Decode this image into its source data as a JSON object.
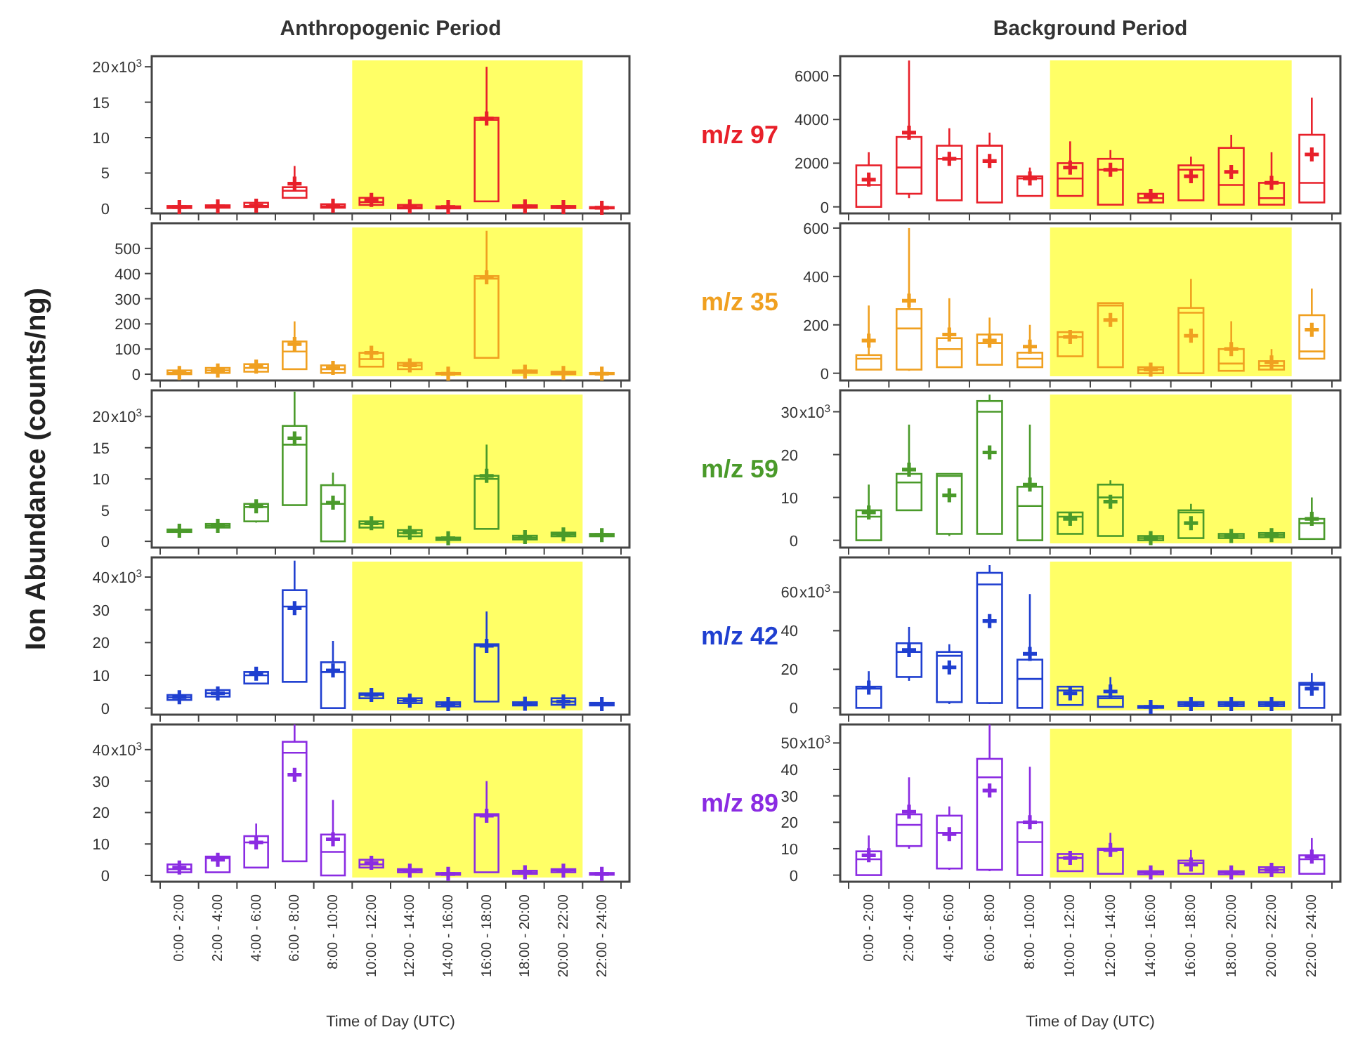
{
  "chart_data": [
    {
      "type": "box",
      "title": "Anthropogenic Period",
      "categories": [
        "0:00 - 2:00",
        "2:00 - 4:00",
        "4:00 - 6:00",
        "6:00 - 8:00",
        "8:00 - 10:00",
        "10:00 - 12:00",
        "12:00 - 14:00",
        "14:00 - 16:00",
        "16:00 - 18:00",
        "18:00 - 20:00",
        "20:00 - 22:00",
        "22:00 - 24:00"
      ],
      "tick_labels": "y",
      "ylim": [
        -0.7,
        21.5
      ],
      "yticks": [
        0,
        5,
        10,
        15,
        20
      ],
      "annotations": [
        "x10$^{3}$"
      ],
      "bands": [
        {
          "axis": "x",
          "from": "10:00 - 12:00",
          "to": "20:00 - 22:00",
          "color": "#ffff66"
        }
      ],
      "series": [
        {
          "color": "#e8202a",
          "boxes": [
            {
              "low": 0,
              "q1": 0.05,
              "median": 0.15,
              "q3": 0.35,
              "high": 0.6,
              "mean": 0.2
            },
            {
              "low": 0,
              "q1": 0.1,
              "median": 0.25,
              "q3": 0.45,
              "high": 0.7,
              "mean": 0.3
            },
            {
              "low": 0.1,
              "q1": 0.2,
              "median": 0.35,
              "q3": 0.8,
              "high": 1.2,
              "mean": 0.4
            },
            {
              "low": 1.5,
              "q1": 1.5,
              "median": 2.5,
              "q3": 3,
              "high": 6,
              "mean": 3.5
            },
            {
              "low": 0,
              "q1": 0.1,
              "median": 0.3,
              "q3": 0.6,
              "high": 0.8,
              "mean": 0.4
            },
            {
              "low": 0.4,
              "q1": 0.5,
              "median": 0.9,
              "q3": 1.5,
              "high": 1.8,
              "mean": 1.2
            },
            {
              "low": 0,
              "q1": 0,
              "median": 0.2,
              "q3": 0.5,
              "high": 0.6,
              "mean": 0.3
            },
            {
              "low": 0,
              "q1": 0,
              "median": 0.1,
              "q3": 0.3,
              "high": 0.4,
              "mean": 0.2
            },
            {
              "low": 1,
              "q1": 1,
              "median": 12.5,
              "q3": 12.8,
              "high": 20,
              "mean": 12.7
            },
            {
              "low": 0,
              "q1": 0.1,
              "median": 0.25,
              "q3": 0.45,
              "high": 0.6,
              "mean": 0.3
            },
            {
              "low": 0,
              "q1": 0.05,
              "median": 0.15,
              "q3": 0.35,
              "high": 0.5,
              "mean": 0.2
            },
            {
              "low": 0,
              "q1": 0,
              "median": 0.05,
              "q3": 0.2,
              "high": 0.3,
              "mean": 0.1
            }
          ]
        }
      ]
    },
    {
      "type": "box",
      "categories": [
        "0:00 - 2:00",
        "2:00 - 4:00",
        "4:00 - 6:00",
        "6:00 - 8:00",
        "8:00 - 10:00",
        "10:00 - 12:00",
        "12:00 - 14:00",
        "14:00 - 16:00",
        "16:00 - 18:00",
        "18:00 - 20:00",
        "20:00 - 22:00",
        "22:00 - 24:00"
      ],
      "tick_labels": "y",
      "ylim": [
        -25,
        600
      ],
      "yticks": [
        0,
        100,
        200,
        300,
        400,
        500
      ],
      "bands": [
        {
          "axis": "x",
          "from": "10:00 - 12:00",
          "to": "20:00 - 22:00",
          "color": "#ffff66"
        }
      ],
      "series": [
        {
          "color": "#f0a020",
          "boxes": [
            {
              "low": 0,
              "q1": 0,
              "median": 5,
              "q3": 15,
              "high": 20,
              "mean": 5
            },
            {
              "low": 5,
              "q1": 5,
              "median": 15,
              "q3": 25,
              "high": 30,
              "mean": 15
            },
            {
              "low": 10,
              "q1": 10,
              "median": 25,
              "q3": 40,
              "high": 50,
              "mean": 30
            },
            {
              "low": 20,
              "q1": 20,
              "median": 90,
              "q3": 130,
              "high": 210,
              "mean": 120
            },
            {
              "low": 5,
              "q1": 5,
              "median": 20,
              "q3": 35,
              "high": 45,
              "mean": 25
            },
            {
              "low": 30,
              "q1": 30,
              "median": 60,
              "q3": 85,
              "high": 110,
              "mean": 85
            },
            {
              "low": 20,
              "q1": 20,
              "median": 35,
              "q3": 45,
              "high": 50,
              "mean": 35
            },
            {
              "low": 0,
              "q1": 0,
              "median": 2,
              "q3": 5,
              "high": 10,
              "mean": 2
            },
            {
              "low": 65,
              "q1": 65,
              "median": 380,
              "q3": 390,
              "high": 570,
              "mean": 385
            },
            {
              "low": 0,
              "q1": 5,
              "median": 10,
              "q3": 15,
              "high": 20,
              "mean": 10
            },
            {
              "low": 0,
              "q1": 0,
              "median": 5,
              "q3": 10,
              "high": 15,
              "mean": 5
            },
            {
              "low": 0,
              "q1": 0,
              "median": 2,
              "q3": 5,
              "high": 8,
              "mean": 2
            }
          ]
        }
      ]
    },
    {
      "type": "box",
      "ylabel": "Ion Abundance (counts/ng)",
      "categories": [
        "0:00 - 2:00",
        "2:00 - 4:00",
        "4:00 - 6:00",
        "6:00 - 8:00",
        "8:00 - 10:00",
        "10:00 - 12:00",
        "12:00 - 14:00",
        "14:00 - 16:00",
        "16:00 - 18:00",
        "18:00 - 20:00",
        "20:00 - 22:00",
        "22:00 - 24:00"
      ],
      "tick_labels": "y",
      "ylim": [
        -1,
        24.2
      ],
      "yticks": [
        0,
        5,
        10,
        15,
        20
      ],
      "annotations": [
        "x10$^{3}$"
      ],
      "bands": [
        {
          "axis": "x",
          "from": "10:00 - 12:00",
          "to": "20:00 - 22:00",
          "color": "#ffff66"
        }
      ],
      "series": [
        {
          "color": "#4a9a2a",
          "boxes": [
            {
              "low": 1.4,
              "q1": 1.5,
              "median": 1.7,
              "q3": 1.9,
              "high": 2,
              "mean": 1.7
            },
            {
              "low": 2,
              "q1": 2.2,
              "median": 2.5,
              "q3": 2.8,
              "high": 3,
              "mean": 2.5
            },
            {
              "low": 3,
              "q1": 3.2,
              "median": 5.5,
              "q3": 6,
              "high": 6.5,
              "mean": 5.6
            },
            {
              "low": 5.8,
              "q1": 5.8,
              "median": 15.5,
              "q3": 18.5,
              "high": 24,
              "mean": 16.5
            },
            {
              "low": 0,
              "q1": 0,
              "median": 6,
              "q3": 9,
              "high": 11,
              "mean": 6.2
            },
            {
              "low": 2.2,
              "q1": 2.2,
              "median": 2.8,
              "q3": 3.2,
              "high": 3.8,
              "mean": 2.9
            },
            {
              "low": 0.8,
              "q1": 0.8,
              "median": 1.3,
              "q3": 1.8,
              "high": 2.2,
              "mean": 1.4
            },
            {
              "low": 0.1,
              "q1": 0.2,
              "median": 0.4,
              "q3": 0.6,
              "high": 0.8,
              "mean": 0.5
            },
            {
              "low": 2,
              "q1": 2,
              "median": 10,
              "q3": 10.5,
              "high": 15.5,
              "mean": 10.5
            },
            {
              "low": 0.2,
              "q1": 0.3,
              "median": 0.6,
              "q3": 0.9,
              "high": 1,
              "mean": 0.7
            },
            {
              "low": 0.7,
              "q1": 0.8,
              "median": 1.1,
              "q3": 1.4,
              "high": 1.6,
              "mean": 1.1
            },
            {
              "low": 0.7,
              "q1": 0.8,
              "median": 1,
              "q3": 1.2,
              "high": 1.3,
              "mean": 1
            }
          ]
        }
      ]
    },
    {
      "type": "box",
      "categories": [
        "0:00 - 2:00",
        "2:00 - 4:00",
        "4:00 - 6:00",
        "6:00 - 8:00",
        "8:00 - 10:00",
        "10:00 - 12:00",
        "12:00 - 14:00",
        "14:00 - 16:00",
        "16:00 - 18:00",
        "18:00 - 20:00",
        "20:00 - 22:00",
        "22:00 - 24:00"
      ],
      "tick_labels": "y",
      "ylim": [
        -2,
        46
      ],
      "yticks": [
        0,
        10,
        20,
        30,
        40
      ],
      "annotations": [
        "x10$^{3}$"
      ],
      "bands": [
        {
          "axis": "x",
          "from": "10:00 - 12:00",
          "to": "20:00 - 22:00",
          "color": "#ffff66"
        }
      ],
      "series": [
        {
          "color": "#1f3fd0",
          "boxes": [
            {
              "low": 2,
              "q1": 2.5,
              "median": 3.3,
              "q3": 4,
              "high": 4.5,
              "mean": 3.3
            },
            {
              "low": 3,
              "q1": 3.5,
              "median": 4.5,
              "q3": 5.5,
              "high": 6,
              "mean": 4.5
            },
            {
              "low": 7.5,
              "q1": 7.5,
              "median": 10,
              "q3": 11,
              "high": 12,
              "mean": 10.5
            },
            {
              "low": 8,
              "q1": 8,
              "median": 31,
              "q3": 36,
              "high": 45,
              "mean": 30.5
            },
            {
              "low": 0,
              "q1": 0,
              "median": 11,
              "q3": 14,
              "high": 20.5,
              "mean": 11.5
            },
            {
              "low": 2.5,
              "q1": 3,
              "median": 4,
              "q3": 4.5,
              "high": 5,
              "mean": 4
            },
            {
              "low": 1,
              "q1": 1.5,
              "median": 2.3,
              "q3": 3,
              "high": 3.5,
              "mean": 2.3
            },
            {
              "low": 0.3,
              "q1": 0.5,
              "median": 1.2,
              "q3": 1.8,
              "high": 2.5,
              "mean": 1.2
            },
            {
              "low": 2,
              "q1": 2,
              "median": 19,
              "q3": 19.5,
              "high": 29.5,
              "mean": 19
            },
            {
              "low": 0.5,
              "q1": 0.8,
              "median": 1.3,
              "q3": 1.8,
              "high": 2.5,
              "mean": 1.3
            },
            {
              "low": 0.8,
              "q1": 1,
              "median": 2,
              "q3": 3,
              "high": 3.5,
              "mean": 2
            },
            {
              "low": 0.5,
              "q1": 0.8,
              "median": 1.2,
              "q3": 1.6,
              "high": 2,
              "mean": 1.2
            }
          ]
        }
      ]
    },
    {
      "type": "box",
      "xlabel": "Time of Day (UTC)",
      "categories": [
        "0:00 - 2:00",
        "2:00 - 4:00",
        "4:00 - 6:00",
        "6:00 - 8:00",
        "8:00 - 10:00",
        "10:00 - 12:00",
        "12:00 - 14:00",
        "14:00 - 16:00",
        "16:00 - 18:00",
        "18:00 - 20:00",
        "20:00 - 22:00",
        "22:00 - 24:00"
      ],
      "ylim": [
        -2,
        48
      ],
      "yticks": [
        0,
        10,
        20,
        30,
        40
      ],
      "annotations": [
        "x10$^{3}$"
      ],
      "bands": [
        {
          "axis": "x",
          "from": "10:00 - 12:00",
          "to": "20:00 - 22:00",
          "color": "#ffff66"
        }
      ],
      "series": [
        {
          "color": "#8a2be2",
          "boxes": [
            {
              "low": 1,
              "q1": 1,
              "median": 2,
              "q3": 3.5,
              "high": 4,
              "mean": 2.5
            },
            {
              "low": 1,
              "q1": 1,
              "median": 5.5,
              "q3": 6,
              "high": 6.5,
              "mean": 5
            },
            {
              "low": 2.5,
              "q1": 2.5,
              "median": 10.5,
              "q3": 12.5,
              "high": 16.5,
              "mean": 10.5
            },
            {
              "low": 4.5,
              "q1": 4.5,
              "median": 39,
              "q3": 42.5,
              "high": 48,
              "mean": 32
            },
            {
              "low": 0,
              "q1": 0,
              "median": 7.5,
              "q3": 13,
              "high": 24,
              "mean": 11.5
            },
            {
              "low": 2.5,
              "q1": 2.5,
              "median": 3.5,
              "q3": 5,
              "high": 6,
              "mean": 4
            },
            {
              "low": 0.8,
              "q1": 1,
              "median": 1.5,
              "q3": 2,
              "high": 2.3,
              "mean": 1.5
            },
            {
              "low": 0,
              "q1": 0.2,
              "median": 0.5,
              "q3": 0.8,
              "high": 1,
              "mean": 0.5
            },
            {
              "low": 1,
              "q1": 1,
              "median": 19,
              "q3": 19.5,
              "high": 30,
              "mean": 19
            },
            {
              "low": 0.3,
              "q1": 0.5,
              "median": 1,
              "q3": 1.5,
              "high": 1.8,
              "mean": 1
            },
            {
              "low": 0.8,
              "q1": 1,
              "median": 1.5,
              "q3": 2,
              "high": 2.3,
              "mean": 1.5
            },
            {
              "low": 0,
              "q1": 0.2,
              "median": 0.5,
              "q3": 0.8,
              "high": 1,
              "mean": 0.5
            }
          ]
        }
      ]
    },
    {
      "type": "box",
      "title": "Background Period",
      "categories": [
        "0:00 - 2:00",
        "2:00 - 4:00",
        "4:00 - 6:00",
        "6:00 - 8:00",
        "8:00 - 10:00",
        "10:00 - 12:00",
        "12:00 - 14:00",
        "14:00 - 16:00",
        "16:00 - 18:00",
        "18:00 - 20:00",
        "20:00 - 22:00",
        "22:00 - 24:00"
      ],
      "tick_labels": "y",
      "ylim": [
        -300,
        6900
      ],
      "yticks": [
        0,
        2000,
        4000,
        6000
      ],
      "bands": [
        {
          "axis": "x",
          "from": "10:00 - 12:00",
          "to": "20:00 - 22:00",
          "color": "#ffff66"
        }
      ],
      "series": [
        {
          "name": "m/z 97",
          "color": "#e8202a",
          "boxes": [
            {
              "low": 0,
              "q1": 0,
              "median": 1000,
              "q3": 1900,
              "high": 2500,
              "mean": 1250
            },
            {
              "low": 400,
              "q1": 600,
              "median": 1800,
              "q3": 3200,
              "high": 6700,
              "mean": 3400
            },
            {
              "low": 300,
              "q1": 300,
              "median": 2200,
              "q3": 2800,
              "high": 3600,
              "mean": 2200
            },
            {
              "low": 200,
              "q1": 200,
              "median": 2800,
              "q3": 2800,
              "high": 3400,
              "mean": 2100
            },
            {
              "low": 500,
              "q1": 500,
              "median": 1300,
              "q3": 1400,
              "high": 1800,
              "mean": 1300
            },
            {
              "low": 500,
              "q1": 500,
              "median": 1300,
              "q3": 2000,
              "high": 3000,
              "mean": 1800
            },
            {
              "low": 100,
              "q1": 100,
              "median": 1700,
              "q3": 2200,
              "high": 2600,
              "mean": 1700
            },
            {
              "low": 200,
              "q1": 200,
              "median": 400,
              "q3": 600,
              "high": 700,
              "mean": 500
            },
            {
              "low": 300,
              "q1": 300,
              "median": 1700,
              "q3": 1900,
              "high": 2300,
              "mean": 1400
            },
            {
              "low": 100,
              "q1": 100,
              "median": 1000,
              "q3": 2700,
              "high": 3300,
              "mean": 1600
            },
            {
              "low": 100,
              "q1": 100,
              "median": 400,
              "q3": 1100,
              "high": 2500,
              "mean": 1100
            },
            {
              "low": 200,
              "q1": 200,
              "median": 1100,
              "q3": 3300,
              "high": 5000,
              "mean": 2400
            }
          ]
        }
      ]
    },
    {
      "type": "box",
      "categories": [
        "0:00 - 2:00",
        "2:00 - 4:00",
        "4:00 - 6:00",
        "6:00 - 8:00",
        "8:00 - 10:00",
        "10:00 - 12:00",
        "12:00 - 14:00",
        "14:00 - 16:00",
        "16:00 - 18:00",
        "18:00 - 20:00",
        "20:00 - 22:00",
        "22:00 - 24:00"
      ],
      "tick_labels": "y",
      "ylim": [
        -30,
        620
      ],
      "yticks": [
        0,
        200,
        400,
        600
      ],
      "bands": [
        {
          "axis": "x",
          "from": "10:00 - 12:00",
          "to": "20:00 - 22:00",
          "color": "#ffff66"
        }
      ],
      "series": [
        {
          "name": "m/z 35",
          "color": "#f0a020",
          "boxes": [
            {
              "low": 15,
              "q1": 15,
              "median": 60,
              "q3": 75,
              "high": 280,
              "mean": 135
            },
            {
              "low": 10,
              "q1": 15,
              "median": 185,
              "q3": 265,
              "high": 600,
              "mean": 300
            },
            {
              "low": 25,
              "q1": 25,
              "median": 100,
              "q3": 145,
              "high": 310,
              "mean": 160
            },
            {
              "low": 35,
              "q1": 35,
              "median": 125,
              "q3": 160,
              "high": 230,
              "mean": 135
            },
            {
              "low": 25,
              "q1": 25,
              "median": 60,
              "q3": 85,
              "high": 200,
              "mean": 110
            },
            {
              "low": 70,
              "q1": 70,
              "median": 150,
              "q3": 170,
              "high": 170,
              "mean": 150
            },
            {
              "low": 25,
              "q1": 25,
              "median": 280,
              "q3": 290,
              "high": 290,
              "mean": 220
            },
            {
              "low": 0,
              "q1": 0,
              "median": 15,
              "q3": 25,
              "high": 30,
              "mean": 15
            },
            {
              "low": 0,
              "q1": 0,
              "median": 250,
              "q3": 270,
              "high": 390,
              "mean": 155
            },
            {
              "low": 10,
              "q1": 10,
              "median": 40,
              "q3": 100,
              "high": 215,
              "mean": 100
            },
            {
              "low": 15,
              "q1": 15,
              "median": 30,
              "q3": 50,
              "high": 100,
              "mean": 45
            },
            {
              "low": 60,
              "q1": 60,
              "median": 90,
              "q3": 240,
              "high": 350,
              "mean": 180
            }
          ]
        }
      ]
    },
    {
      "type": "box",
      "categories": [
        "0:00 - 2:00",
        "2:00 - 4:00",
        "4:00 - 6:00",
        "6:00 - 8:00",
        "8:00 - 10:00",
        "10:00 - 12:00",
        "12:00 - 14:00",
        "14:00 - 16:00",
        "16:00 - 18:00",
        "18:00 - 20:00",
        "20:00 - 22:00",
        "22:00 - 24:00"
      ],
      "tick_labels": "y",
      "ylim": [
        -1.7,
        35
      ],
      "yticks": [
        0,
        10,
        20,
        30
      ],
      "annotations": [
        "x10$^{3}$"
      ],
      "bands": [
        {
          "axis": "x",
          "from": "10:00 - 12:00",
          "to": "20:00 - 22:00",
          "color": "#ffff66"
        }
      ],
      "series": [
        {
          "name": "m/z 59",
          "color": "#4a9a2a",
          "boxes": [
            {
              "low": 0,
              "q1": 0,
              "median": 5.5,
              "q3": 7,
              "high": 13,
              "mean": 6.5
            },
            {
              "low": 7,
              "q1": 7,
              "median": 13.5,
              "q3": 15.5,
              "high": 27,
              "mean": 16.5
            },
            {
              "low": 1,
              "q1": 1.5,
              "median": 15,
              "q3": 15.5,
              "high": 15.5,
              "mean": 10.5
            },
            {
              "low": 1.5,
              "q1": 1.5,
              "median": 30,
              "q3": 32.5,
              "high": 34,
              "mean": 20.5
            },
            {
              "low": 0,
              "q1": 0,
              "median": 8,
              "q3": 12.5,
              "high": 27,
              "mean": 13
            },
            {
              "low": 1.5,
              "q1": 1.5,
              "median": 5.5,
              "q3": 6.5,
              "high": 6.5,
              "mean": 5
            },
            {
              "low": 1,
              "q1": 1,
              "median": 10,
              "q3": 13,
              "high": 14,
              "mean": 9
            },
            {
              "low": 0,
              "q1": 0,
              "median": 0.5,
              "q3": 1,
              "high": 1.2,
              "mean": 0.5
            },
            {
              "low": 0.5,
              "q1": 0.5,
              "median": 6.5,
              "q3": 7,
              "high": 8.5,
              "mean": 4
            },
            {
              "low": 0.4,
              "q1": 0.5,
              "median": 1,
              "q3": 1.5,
              "high": 1.8,
              "mean": 1
            },
            {
              "low": 0.5,
              "q1": 0.7,
              "median": 1.2,
              "q3": 1.7,
              "high": 2,
              "mean": 1.2
            },
            {
              "low": 0.3,
              "q1": 0.3,
              "median": 4,
              "q3": 5,
              "high": 10,
              "mean": 5
            }
          ]
        }
      ]
    },
    {
      "type": "box",
      "categories": [
        "0:00 - 2:00",
        "2:00 - 4:00",
        "4:00 - 6:00",
        "6:00 - 8:00",
        "8:00 - 10:00",
        "10:00 - 12:00",
        "12:00 - 14:00",
        "14:00 - 16:00",
        "16:00 - 18:00",
        "18:00 - 20:00",
        "20:00 - 22:00",
        "22:00 - 24:00"
      ],
      "tick_labels": "y",
      "ylim": [
        -3.5,
        78
      ],
      "yticks": [
        0,
        20,
        40,
        60
      ],
      "annotations": [
        "x10$^{3}$"
      ],
      "bands": [
        {
          "axis": "x",
          "from": "10:00 - 12:00",
          "to": "20:00 - 22:00",
          "color": "#ffff66"
        }
      ],
      "series": [
        {
          "name": "m/z 42",
          "color": "#1f3fd0",
          "boxes": [
            {
              "low": 0,
              "q1": 0,
              "median": 10,
              "q3": 11,
              "high": 19,
              "mean": 10.5
            },
            {
              "low": 14,
              "q1": 16,
              "median": 29,
              "q3": 33.5,
              "high": 42,
              "mean": 30
            },
            {
              "low": 2,
              "q1": 3,
              "median": 27,
              "q3": 29,
              "high": 33,
              "mean": 21
            },
            {
              "low": 2,
              "q1": 2.5,
              "median": 64,
              "q3": 70,
              "high": 74,
              "mean": 45
            },
            {
              "low": 0,
              "q1": 0,
              "median": 15,
              "q3": 25,
              "high": 59,
              "mean": 28
            },
            {
              "low": 1.5,
              "q1": 1.5,
              "median": 9,
              "q3": 11,
              "high": 11,
              "mean": 7.5
            },
            {
              "low": 0.5,
              "q1": 0.5,
              "median": 5,
              "q3": 6,
              "high": 16,
              "mean": 8.5
            },
            {
              "low": 0,
              "q1": 0,
              "median": 0.5,
              "q3": 1,
              "high": 1.5,
              "mean": 0.5
            },
            {
              "low": 0.5,
              "q1": 1,
              "median": 2,
              "q3": 3,
              "high": 3.5,
              "mean": 2
            },
            {
              "low": 0.5,
              "q1": 1,
              "median": 2,
              "q3": 3,
              "high": 3.5,
              "mean": 2
            },
            {
              "low": 0.5,
              "q1": 1,
              "median": 2,
              "q3": 3,
              "high": 3.5,
              "mean": 2
            },
            {
              "low": 0,
              "q1": 0,
              "median": 12,
              "q3": 13,
              "high": 18,
              "mean": 10
            }
          ]
        }
      ]
    },
    {
      "type": "box",
      "xlabel": "Time of Day (UTC)",
      "categories": [
        "0:00 - 2:00",
        "2:00 - 4:00",
        "4:00 - 6:00",
        "6:00 - 8:00",
        "8:00 - 10:00",
        "10:00 - 12:00",
        "12:00 - 14:00",
        "14:00 - 16:00",
        "16:00 - 18:00",
        "18:00 - 20:00",
        "20:00 - 22:00",
        "22:00 - 24:00"
      ],
      "ylim": [
        -2.5,
        57
      ],
      "yticks": [
        0,
        10,
        20,
        30,
        40,
        50
      ],
      "annotations": [
        "x10$^{3}$"
      ],
      "bands": [
        {
          "axis": "x",
          "from": "10:00 - 12:00",
          "to": "20:00 - 22:00",
          "color": "#ffff66"
        }
      ],
      "series": [
        {
          "name": "m/z 89",
          "color": "#8a2be2",
          "boxes": [
            {
              "low": 0,
              "q1": 0,
              "median": 6,
              "q3": 9,
              "high": 15,
              "mean": 7.5
            },
            {
              "low": 10,
              "q1": 11,
              "median": 19,
              "q3": 23,
              "high": 37,
              "mean": 24
            },
            {
              "low": 2,
              "q1": 2.5,
              "median": 16,
              "q3": 22.5,
              "high": 26,
              "mean": 15.5
            },
            {
              "low": 1.5,
              "q1": 2,
              "median": 37,
              "q3": 44,
              "high": 57,
              "mean": 32
            },
            {
              "low": 0,
              "q1": 0,
              "median": 12.5,
              "q3": 20,
              "high": 41,
              "mean": 20
            },
            {
              "low": 1.5,
              "q1": 1.5,
              "median": 6.5,
              "q3": 8,
              "high": 8,
              "mean": 6.5
            },
            {
              "low": 0.5,
              "q1": 0.5,
              "median": 9.5,
              "q3": 10,
              "high": 16,
              "mean": 9.5
            },
            {
              "low": 0,
              "q1": 0.3,
              "median": 1,
              "q3": 1.5,
              "high": 2,
              "mean": 1
            },
            {
              "low": 0.5,
              "q1": 0.5,
              "median": 4.5,
              "q3": 5.5,
              "high": 9.5,
              "mean": 4
            },
            {
              "low": 0,
              "q1": 0.3,
              "median": 1,
              "q3": 1.5,
              "high": 2,
              "mean": 1
            },
            {
              "low": 0.8,
              "q1": 1,
              "median": 2,
              "q3": 3,
              "high": 3.5,
              "mean": 2
            },
            {
              "low": 0.5,
              "q1": 0.5,
              "median": 6,
              "q3": 7.5,
              "high": 14,
              "mean": 7
            }
          ]
        }
      ]
    }
  ]
}
